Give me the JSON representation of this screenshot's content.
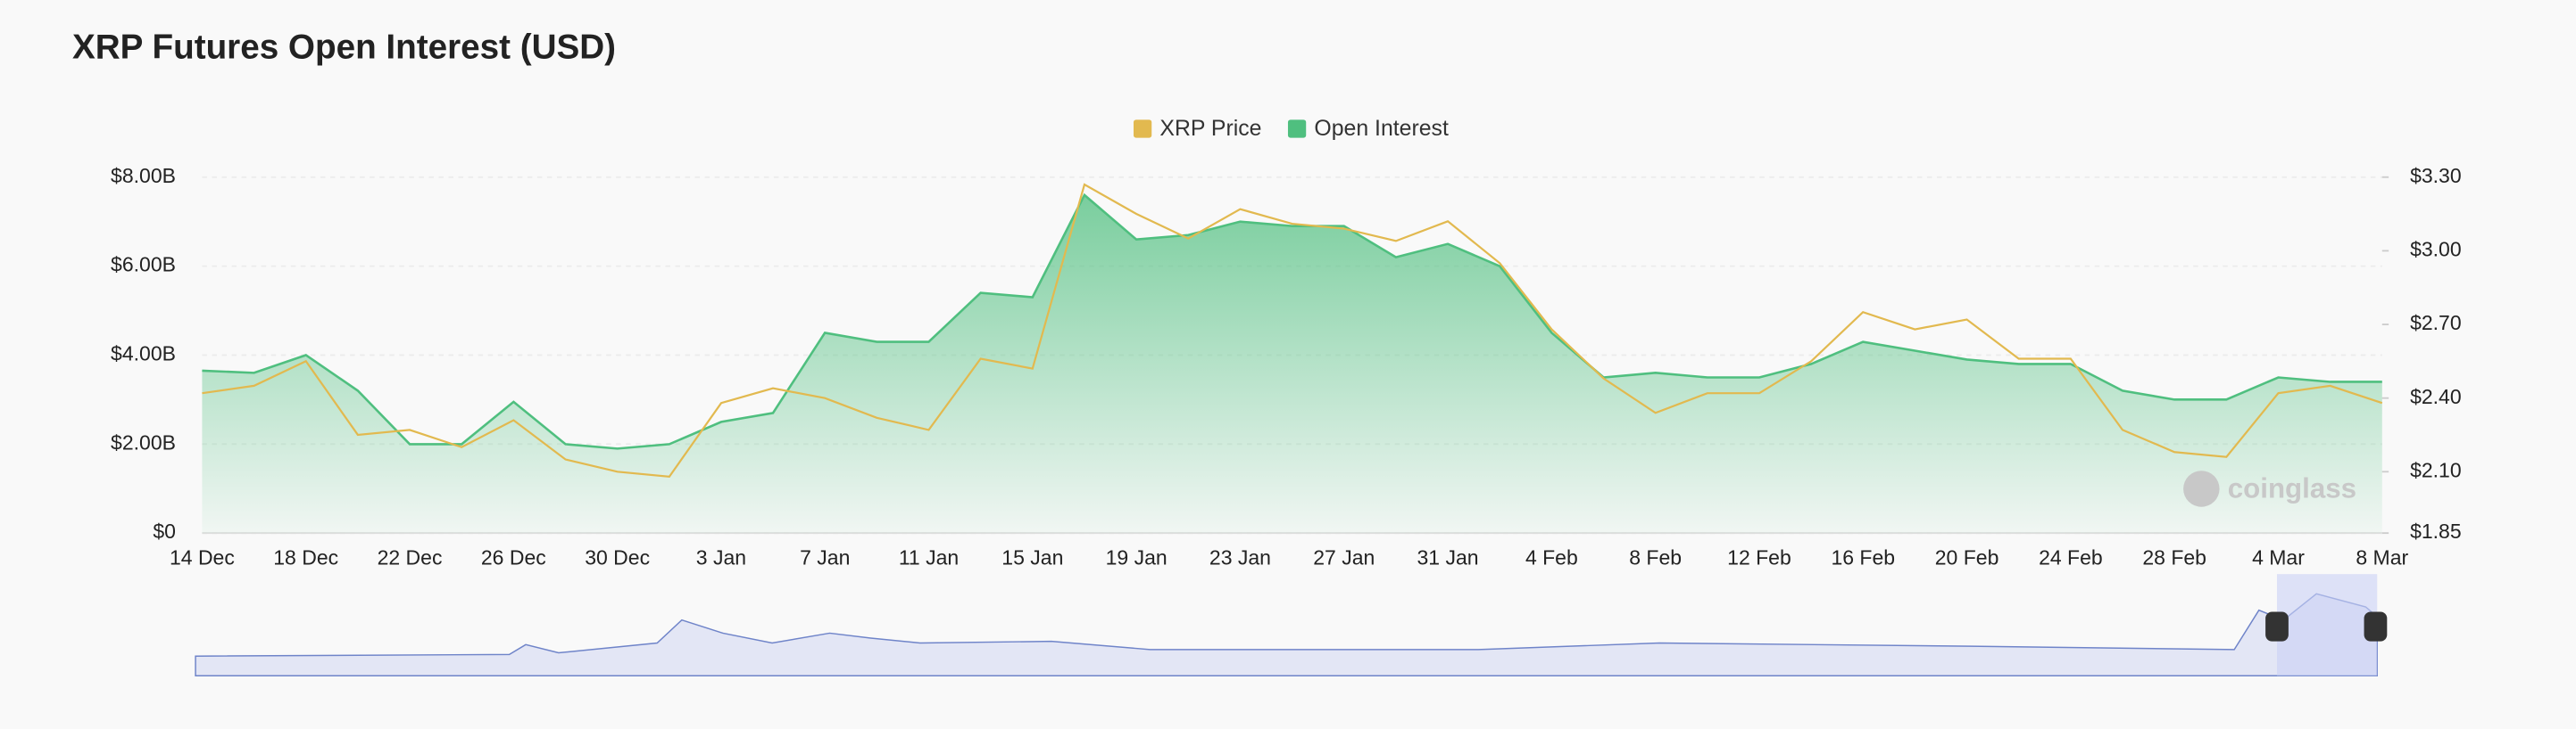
{
  "chart_data": {
    "type": "line",
    "title": "XRP Futures Open Interest (USD)",
    "watermark": "coinglass",
    "categories": [
      "14 Dec",
      null,
      "18 Dec",
      null,
      "22 Dec",
      null,
      "26 Dec",
      null,
      "30 Dec",
      null,
      "3 Jan",
      null,
      "7 Jan",
      null,
      "11 Jan",
      null,
      "15 Jan",
      null,
      "19 Jan",
      null,
      "23 Jan",
      null,
      "27 Jan",
      null,
      "31 Jan",
      null,
      "4 Feb",
      null,
      "8 Feb",
      null,
      "12 Feb",
      null,
      "16 Feb",
      null,
      "20 Feb",
      null,
      "24 Feb",
      null,
      "28 Feb",
      null,
      "4 Mar",
      null,
      "8 Mar"
    ],
    "series": [
      {
        "name": "XRP Price",
        "color": "#e2b94f",
        "axis": "y2",
        "values": [
          2.42,
          2.45,
          2.55,
          2.25,
          2.27,
          2.2,
          2.31,
          2.15,
          2.1,
          2.08,
          2.38,
          2.44,
          2.4,
          2.32,
          2.27,
          2.56,
          2.52,
          3.27,
          3.15,
          3.05,
          3.17,
          3.11,
          3.09,
          3.04,
          3.12,
          2.95,
          2.68,
          2.48,
          2.34,
          2.42,
          2.42,
          2.55,
          2.75,
          2.68,
          2.72,
          2.56,
          2.56,
          2.27,
          2.18,
          2.16,
          2.42,
          2.45,
          2.38
        ]
      },
      {
        "name": "Open Interest",
        "color": "#4fbf7f",
        "area": true,
        "values": [
          3650000000,
          3600000000,
          4000000000,
          3200000000,
          2000000000,
          2000000000,
          2950000000,
          2000000000,
          1900000000,
          2000000000,
          2500000000,
          2700000000,
          4500000000,
          4300000000,
          4300000000,
          5400000000,
          5300000000,
          7600000000,
          6600000000,
          6700000000,
          7000000000,
          6900000000,
          6900000000,
          6200000000,
          6500000000,
          6000000000,
          4500000000,
          3500000000,
          3600000000,
          3500000000,
          3500000000,
          3800000000,
          4300000000,
          4100000000,
          3900000000,
          3800000000,
          3800000000,
          3200000000,
          3000000000,
          3000000000,
          3500000000,
          3400000000,
          3400000000
        ]
      }
    ],
    "ylim": [
      0,
      8000000000
    ],
    "yticks": [
      {
        "value": 0,
        "label": "$0"
      },
      {
        "value": 2000000000,
        "label": "$2.00B"
      },
      {
        "value": 4000000000,
        "label": "$4.00B"
      },
      {
        "value": 6000000000,
        "label": "$6.00B"
      },
      {
        "value": 8000000000,
        "label": "$8.00B"
      }
    ],
    "y2lim": [
      1.85,
      3.3
    ],
    "y2ticks": [
      {
        "value": 1.85,
        "label": "$1.85"
      },
      {
        "value": 2.1,
        "label": "$2.10"
      },
      {
        "value": 2.4,
        "label": "$2.40"
      },
      {
        "value": 2.7,
        "label": "$2.70"
      },
      {
        "value": 3.0,
        "label": "$3.00"
      },
      {
        "value": 3.3,
        "label": "$3.30"
      }
    ],
    "grid": true,
    "legend": "top"
  }
}
